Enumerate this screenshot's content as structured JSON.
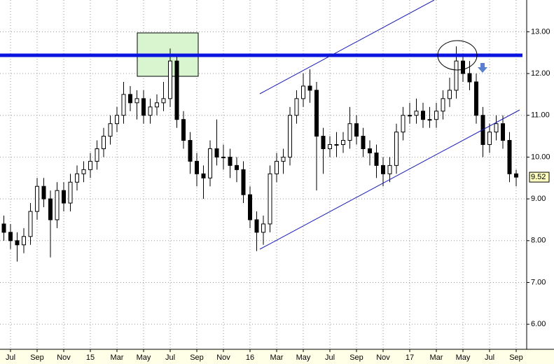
{
  "chart_data": {
    "type": "candlestick",
    "x": [
      -0.5,
      0,
      0.5,
      1,
      1.5,
      2,
      2.5,
      3,
      3.5,
      4,
      4.5,
      5,
      5.5,
      6,
      6.5,
      7,
      7.5,
      8,
      8.5,
      9,
      9.5,
      10,
      10.5,
      11,
      11.5,
      12,
      12.5,
      13,
      13.5,
      14,
      14.5,
      15,
      15.5,
      16,
      16.5,
      17,
      17.5,
      18,
      18.5,
      19,
      19.5,
      20,
      20.5,
      21,
      21.5,
      22,
      22.5,
      23,
      23.5,
      24,
      24.5,
      25,
      25.5,
      26,
      26.5,
      27,
      27.5,
      28,
      28.5,
      29,
      29.5,
      30,
      30.5,
      31,
      31.5,
      32,
      32.5,
      33,
      33.5,
      34,
      34.5,
      35,
      35.5,
      36,
      36.5,
      37,
      37.5,
      38
    ],
    "open": [
      8.4,
      8.2,
      8.0,
      7.9,
      8.1,
      8.7,
      9.3,
      9.0,
      8.5,
      9.2,
      8.9,
      9.4,
      9.6,
      9.7,
      9.9,
      10.2,
      10.5,
      10.8,
      11.0,
      11.5,
      11.3,
      11.4,
      11.0,
      11.2,
      11.3,
      11.4,
      12.3,
      10.9,
      10.4,
      9.9,
      9.6,
      9.5,
      10.2,
      10.0,
      10.0,
      9.8,
      9.7,
      9.1,
      8.5,
      8.2,
      8.4,
      9.6,
      9.9,
      10.0,
      11.0,
      11.4,
      11.7,
      11.6,
      10.5,
      10.2,
      10.3,
      10.3,
      10.4,
      10.8,
      10.5,
      10.2,
      10.1,
      9.8,
      9.6,
      9.8,
      10.6,
      11.0,
      11.0,
      11.1,
      10.9,
      10.9,
      11.1,
      11.4,
      11.6,
      12.3,
      12.0,
      11.8,
      11.0,
      10.3,
      10.6,
      10.8,
      10.4,
      9.6
    ],
    "high": [
      8.6,
      8.4,
      8.2,
      8.3,
      8.9,
      9.5,
      9.5,
      9.2,
      9.4,
      9.4,
      9.6,
      9.8,
      9.9,
      10.1,
      10.4,
      10.7,
      11.0,
      11.2,
      11.8,
      11.7,
      11.6,
      11.6,
      11.4,
      11.5,
      11.8,
      12.6,
      12.4,
      11.1,
      10.6,
      10.1,
      9.8,
      10.4,
      10.9,
      10.3,
      10.2,
      10.0,
      9.9,
      9.3,
      8.7,
      8.6,
      9.8,
      10.1,
      10.2,
      11.2,
      11.6,
      12.0,
      12.1,
      11.8,
      10.7,
      10.5,
      10.6,
      10.6,
      11.2,
      11.0,
      10.7,
      10.4,
      10.3,
      10.0,
      10.0,
      10.8,
      11.2,
      11.3,
      11.4,
      11.3,
      11.2,
      11.3,
      11.6,
      11.9,
      12.65,
      12.4,
      12.3,
      12.0,
      11.2,
      10.8,
      11.0,
      11.0,
      10.6,
      9.7
    ],
    "low": [
      8.0,
      7.8,
      7.5,
      7.7,
      7.9,
      8.5,
      8.8,
      7.6,
      8.3,
      8.7,
      8.7,
      9.2,
      9.4,
      9.5,
      9.7,
      10.0,
      10.3,
      10.6,
      10.8,
      11.1,
      10.9,
      10.8,
      10.8,
      11.0,
      11.1,
      11.2,
      10.7,
      10.2,
      9.6,
      9.3,
      9.0,
      9.3,
      9.8,
      9.7,
      9.5,
      9.4,
      8.9,
      8.3,
      7.75,
      7.9,
      8.2,
      9.4,
      9.6,
      9.8,
      10.8,
      11.2,
      11.3,
      9.2,
      9.6,
      10.0,
      10.0,
      10.1,
      10.2,
      10.3,
      10.0,
      9.8,
      9.5,
      9.3,
      9.4,
      9.6,
      10.4,
      10.8,
      10.8,
      10.7,
      10.7,
      10.7,
      10.9,
      11.2,
      11.4,
      11.8,
      11.6,
      10.8,
      10.0,
      10.1,
      10.4,
      10.2,
      9.4,
      9.3
    ],
    "close": [
      8.2,
      8.0,
      7.9,
      8.1,
      8.7,
      9.3,
      9.0,
      8.5,
      9.2,
      8.9,
      9.4,
      9.6,
      9.7,
      9.9,
      10.2,
      10.5,
      10.8,
      11.0,
      11.5,
      11.3,
      11.4,
      11.0,
      11.2,
      11.3,
      11.4,
      12.3,
      10.9,
      10.4,
      9.9,
      9.6,
      9.5,
      10.2,
      10.0,
      10.0,
      9.8,
      9.7,
      9.1,
      8.5,
      8.2,
      8.4,
      9.6,
      9.9,
      10.0,
      11.0,
      11.4,
      11.7,
      11.6,
      10.5,
      10.2,
      10.3,
      10.3,
      10.4,
      10.8,
      10.5,
      10.2,
      10.1,
      9.8,
      9.6,
      9.8,
      10.6,
      11.0,
      11.0,
      11.1,
      10.9,
      10.9,
      11.1,
      11.4,
      11.6,
      12.3,
      12.0,
      11.8,
      11.0,
      10.3,
      10.6,
      10.8,
      10.4,
      9.6,
      9.52
    ],
    "xlim": [
      -0.79,
      38.79
    ],
    "xticks": [
      {
        "value": 0,
        "label": "Jul"
      },
      {
        "value": 2,
        "label": "Sep"
      },
      {
        "value": 4,
        "label": "Nov"
      },
      {
        "value": 6,
        "label": "15"
      },
      {
        "value": 8,
        "label": "Mar"
      },
      {
        "value": 10,
        "label": "May"
      },
      {
        "value": 12,
        "label": "Jul"
      },
      {
        "value": 14,
        "label": "Sep"
      },
      {
        "value": 16,
        "label": "Nov"
      },
      {
        "value": 18,
        "label": "16"
      },
      {
        "value": 20,
        "label": "Mar"
      },
      {
        "value": 22,
        "label": "May"
      },
      {
        "value": 24,
        "label": "Jul"
      },
      {
        "value": 26,
        "label": "Sep"
      },
      {
        "value": 28,
        "label": "Nov"
      },
      {
        "value": 30,
        "label": "17"
      },
      {
        "value": 32,
        "label": "Mar"
      },
      {
        "value": 34,
        "label": "May"
      },
      {
        "value": 36,
        "label": "Jul"
      },
      {
        "value": 38,
        "label": "Sep"
      }
    ],
    "ylim": [
      5.4,
      13.76
    ],
    "yticks": [
      {
        "value": 6,
        "label": "6.00"
      },
      {
        "value": 7,
        "label": "7.00"
      },
      {
        "value": 8,
        "label": "8.00"
      },
      {
        "value": 9,
        "label": "9.00"
      },
      {
        "value": 10,
        "label": "10.00"
      },
      {
        "value": 11,
        "label": "11.00"
      },
      {
        "value": 12,
        "label": "12.00"
      },
      {
        "value": 13,
        "label": "13.00"
      }
    ],
    "grid": true,
    "color": "#000000"
  }
}
